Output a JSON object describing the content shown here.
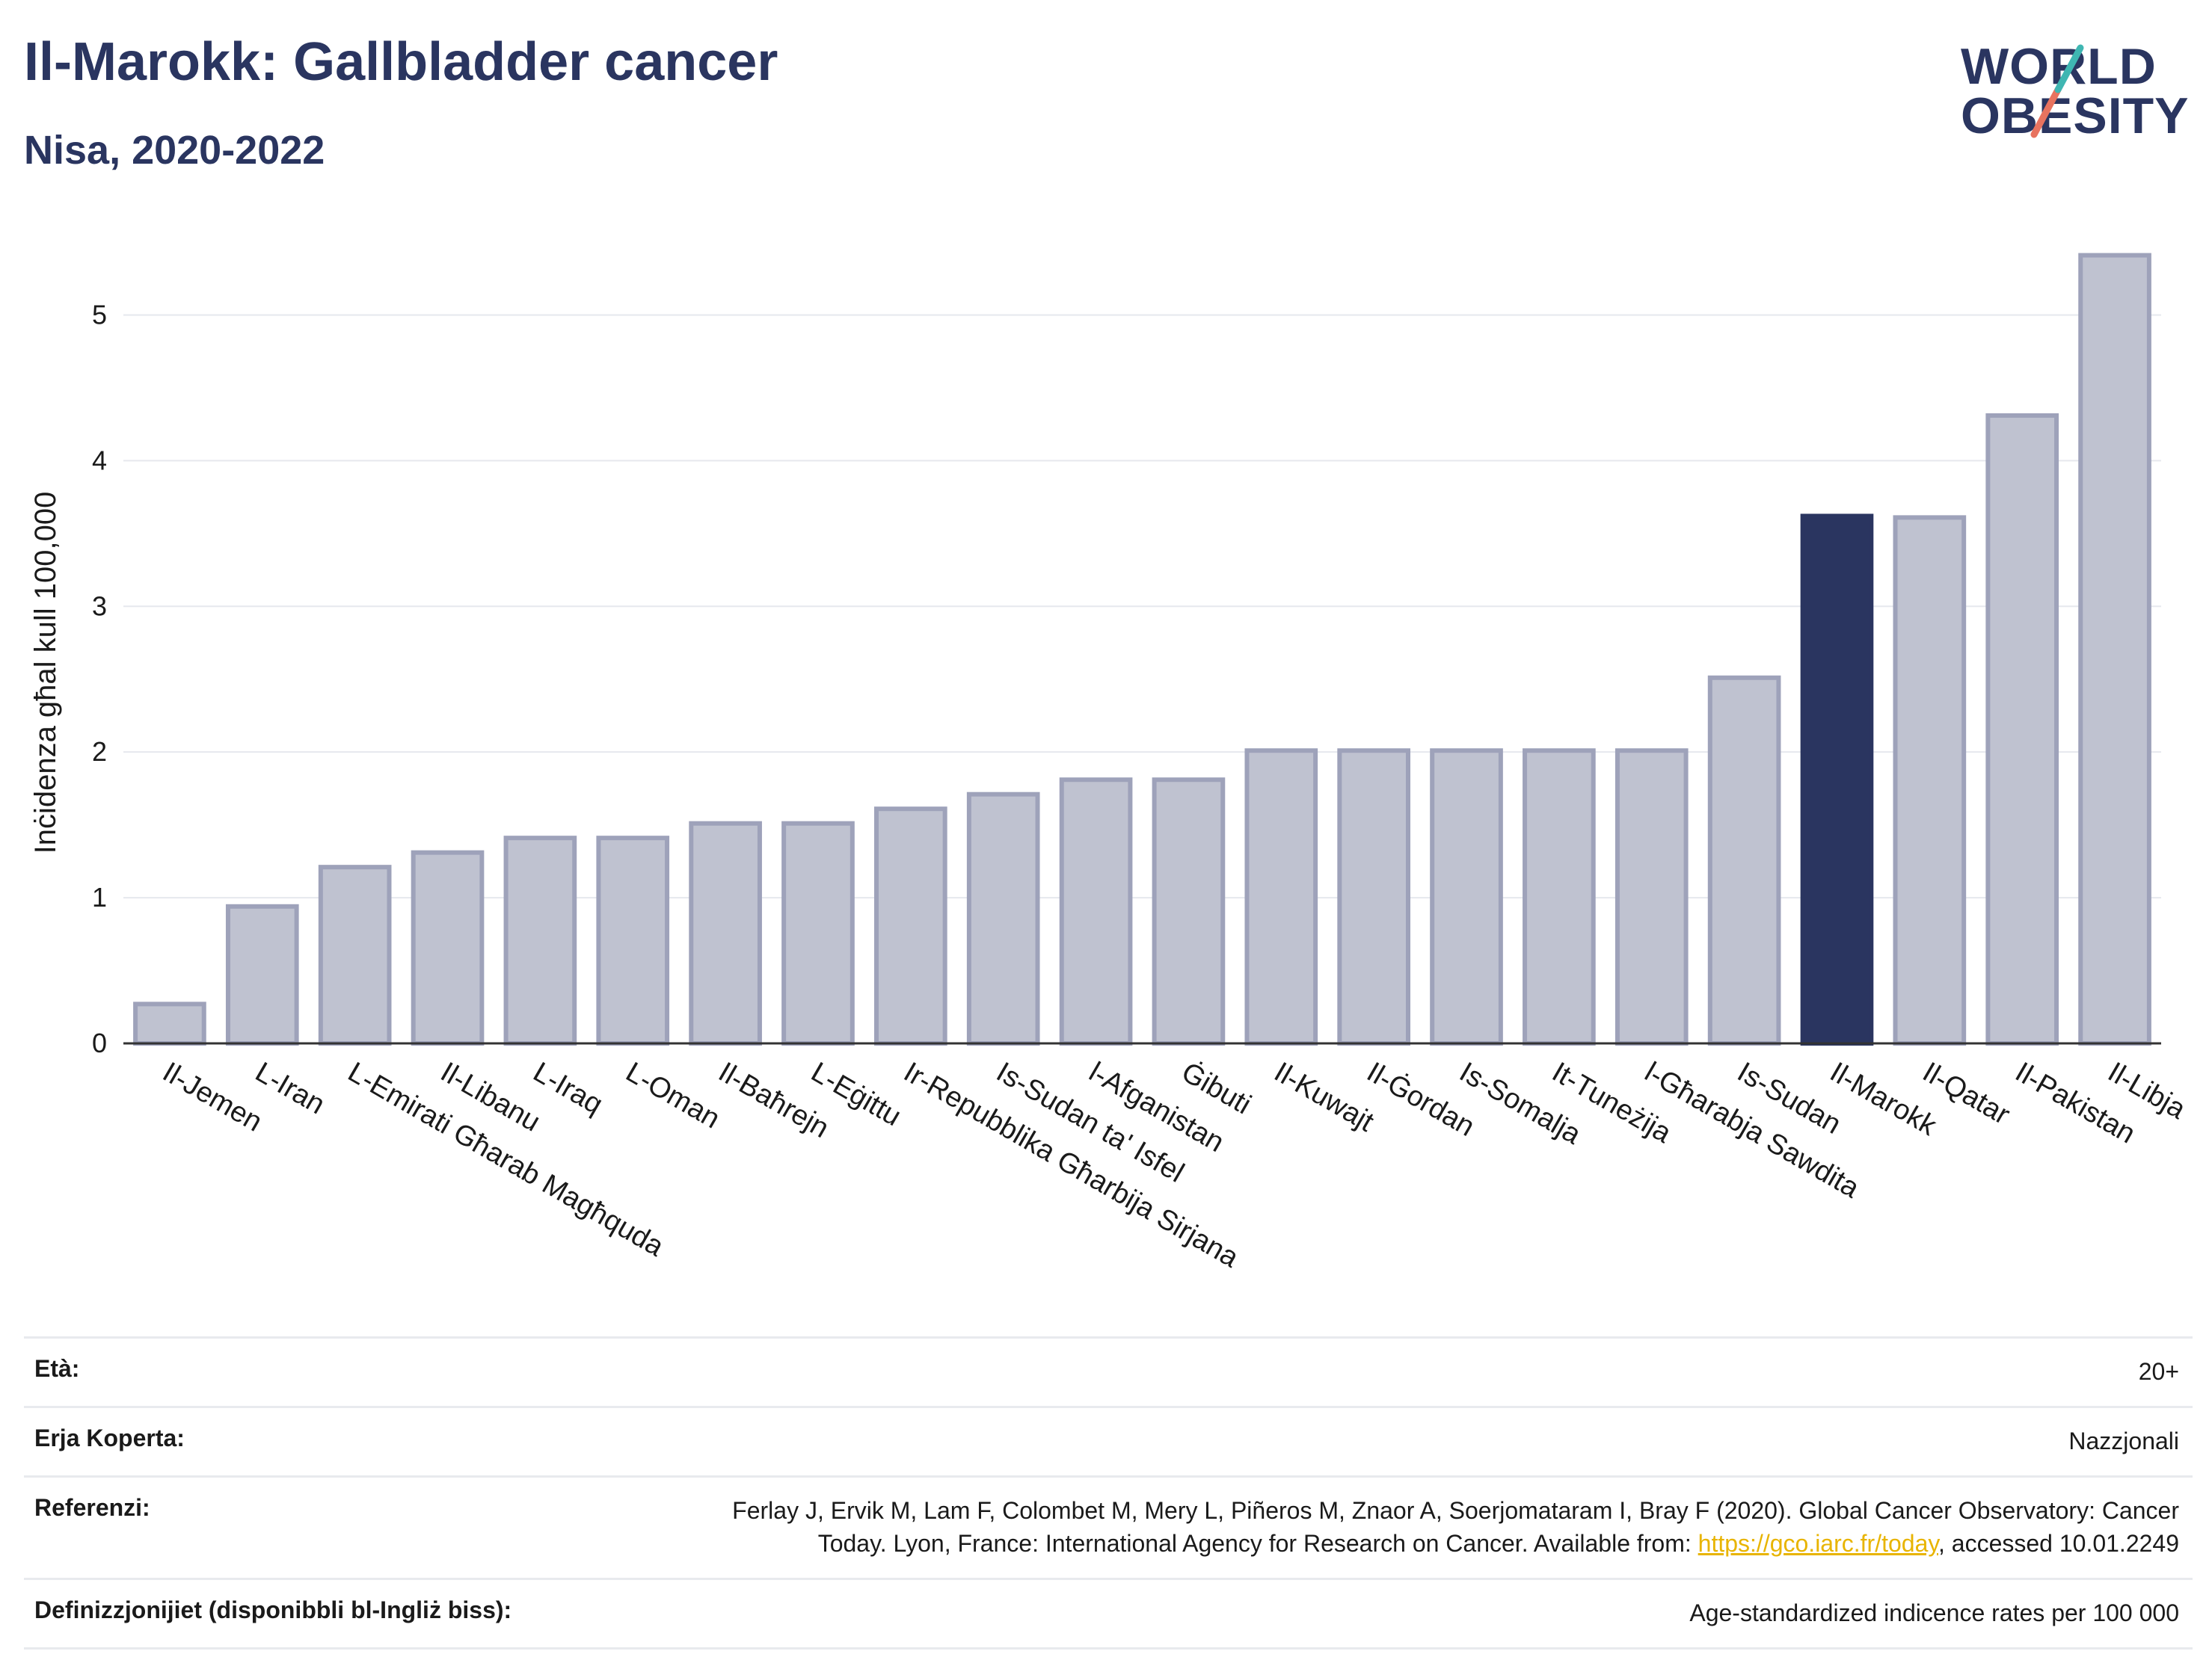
{
  "title": "Il-Marokk: Gallbladder cancer",
  "subtitle": "Nisa, 2020-2022",
  "logo": {
    "line1": "WORLD",
    "line2": "OBESITY"
  },
  "colors": {
    "bar": "#bfc2d0",
    "bar_border": "#9ea2ba",
    "highlight": "#2a3560",
    "grid": "#e6e8ee"
  },
  "chart_data": {
    "type": "bar",
    "ylabel": "Inċidenza għal kull 100,000",
    "ylim": [
      0,
      5.5
    ],
    "yticks": [
      0,
      1,
      2,
      3,
      4,
      5
    ],
    "grid": true,
    "highlight": "Il-Marokk",
    "categories": [
      "Il-Jemen",
      "L-Iran",
      "L-Emirati Għarab Magħquda",
      "Il-Libanu",
      "L-Iraq",
      "L-Oman",
      "Il-Baħrejn",
      "L-Eġittu",
      "Ir-Repubblika Għarbija Sirjana",
      "Is-Sudan ta' Isfel",
      "l-Afganistan",
      "Ġibuti",
      "Il-Kuwajt",
      "Il-Ġordan",
      "Is-Somalja",
      "It-Tuneżija",
      "l-Għarabja Sawdita",
      "Is-Sudan",
      "Il-Marokk",
      "Il-Qatar",
      "Il-Pakistan",
      "Il-Libja"
    ],
    "values": [
      0.27,
      0.94,
      1.21,
      1.31,
      1.41,
      1.41,
      1.51,
      1.51,
      1.61,
      1.71,
      1.81,
      1.81,
      2.01,
      2.01,
      2.01,
      2.01,
      2.01,
      2.51,
      3.62,
      3.61,
      4.31,
      5.41
    ]
  },
  "footer": {
    "age_label": "Età:",
    "age_value": "20+",
    "area_label": "Erja Koperta:",
    "area_value": "Nazzjonali",
    "ref_label": "Referenzi:",
    "ref_line1": "Ferlay J, Ervik M, Lam F, Colombet M, Mery L, Piñeros M, Znaor A, Soerjomataram I, Bray F (2020). Global Cancer Observatory: Cancer",
    "ref_line2_pre": "Today. Lyon, France: International Agency for Research on Cancer. Available from: ",
    "ref_link": "https://gco.iarc.fr/today",
    "ref_line2_post": ", accessed 10.01.2249",
    "def_label": "Definizzjonijiet (disponibbli bl-Ingliż biss):",
    "def_value": "Age-standardized indicence rates per 100 000"
  }
}
